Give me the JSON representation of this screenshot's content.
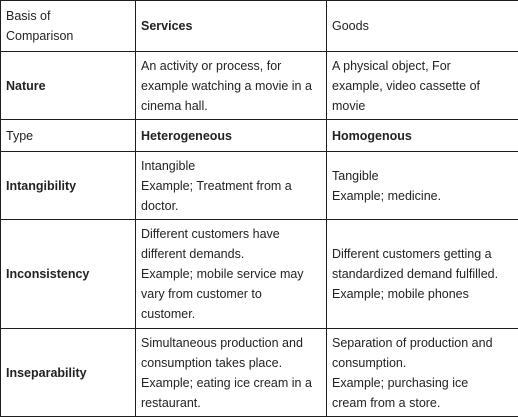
{
  "table": {
    "headers": {
      "basis": [
        "Basis of",
        "Comparison"
      ],
      "services": "Services",
      "goods": "Goods"
    },
    "rows": [
      {
        "basis": "Nature",
        "services": [
          "An activity or process, for",
          "example watching a movie in a",
          "cinema hall."
        ],
        "goods": [
          "A physical object, For",
          "example, video cassette of",
          "movie"
        ]
      },
      {
        "basis": "Type",
        "services": [
          "Heterogeneous"
        ],
        "goods": [
          "Homogenous"
        ]
      },
      {
        "basis": "Intangibility",
        "services": [
          "Intangible",
          "Example; Treatment from a",
          "doctor."
        ],
        "goods": [
          "Tangible",
          "Example; medicine."
        ]
      },
      {
        "basis": "Inconsistency",
        "services": [
          "Different customers have",
          "different demands.",
          "Example; mobile service may",
          "vary from customer to",
          "customer."
        ],
        "goods": [
          "Different customers getting a",
          "standardized demand fulfilled.",
          "Example; mobile phones"
        ]
      },
      {
        "basis": "Inseparability",
        "services": [
          "Simultaneous production and",
          "consumption takes place.",
          "Example; eating ice cream in a",
          "restaurant."
        ],
        "goods": [
          "Separation of production and",
          "consumption.",
          "Example; purchasing ice",
          "cream from a store."
        ]
      }
    ]
  }
}
